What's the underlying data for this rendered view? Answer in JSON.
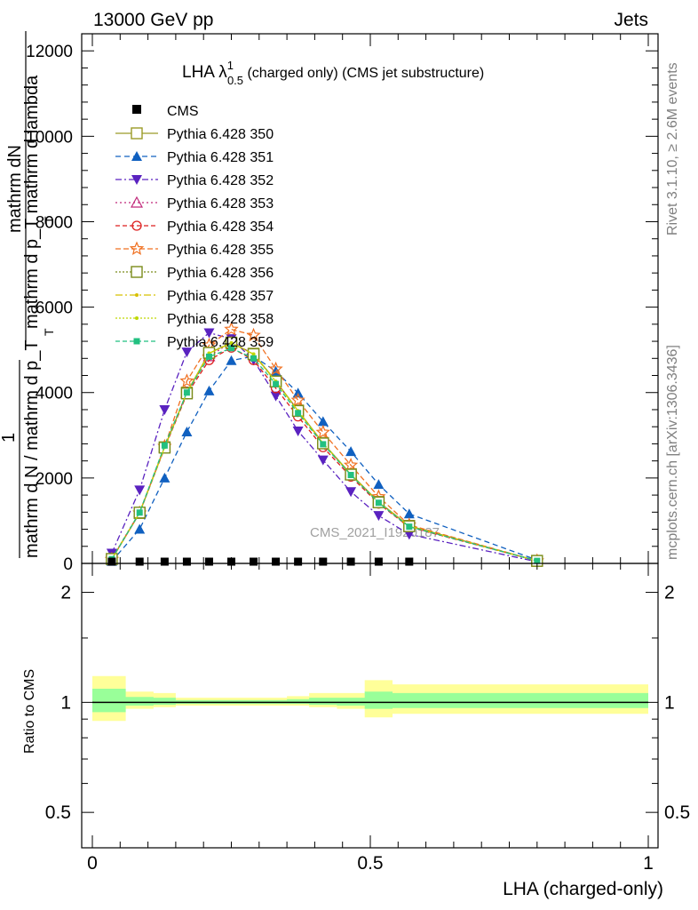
{
  "header": {
    "left": "13000 GeV pp",
    "right": "Jets"
  },
  "side_labels": {
    "rivet": "Rivet 3.1.10, ≥ 2.6M events",
    "mcplots": "mcplots.cern.ch [arXiv:1306.3436]"
  },
  "watermark": "CMS_2021_I1920187",
  "chart_data": [
    {
      "type": "line",
      "panel": "main",
      "title": {
        "text": "LHA λ",
        "sup": "1",
        "sub": "0.5",
        "rest": " (charged only) (CMS jet substructure)"
      },
      "ylabel": {
        "line1": "mathrm dN",
        "line2": "mathrm d p_T mathrm d lambda",
        "line3": "1",
        "line4": "mathrm d N / mathrm d p_T",
        "sub_T": "T"
      },
      "xlim": [
        0,
        1
      ],
      "ylim": [
        0,
        12400
      ],
      "yticks": [
        0,
        2000,
        4000,
        6000,
        8000,
        10000,
        12000
      ],
      "ytick_labels": [
        "0",
        "2000",
        "4000",
        "6000",
        "8000",
        "10000",
        "12000"
      ],
      "legend_position": "top-left",
      "cms": {
        "name": "CMS",
        "x": [
          0.035,
          0.085,
          0.13,
          0.17,
          0.21,
          0.25,
          0.29,
          0.33,
          0.37,
          0.415,
          0.465,
          0.515,
          0.57
        ],
        "y": [
          10,
          10,
          10,
          10,
          10,
          10,
          10,
          10,
          10,
          10,
          10,
          10,
          10
        ]
      },
      "x": [
        0.035,
        0.085,
        0.13,
        0.17,
        0.21,
        0.25,
        0.29,
        0.33,
        0.37,
        0.415,
        0.465,
        0.515,
        0.57,
        0.8
      ],
      "series": [
        {
          "name": "Pythia 6.428 350",
          "color": "#9b9b27",
          "dash": "",
          "marker": "open-square",
          "y": [
            100,
            1180,
            2720,
            4000,
            4930,
            5160,
            4910,
            4270,
            3580,
            2820,
            2090,
            1440,
            880,
            60
          ]
        },
        {
          "name": "Pythia 6.428 351",
          "color": "#1060c0",
          "dash": "6,4",
          "marker": "filled-triangle-up",
          "y": [
            50,
            800,
            2000,
            3080,
            4040,
            4750,
            4850,
            4500,
            3990,
            3320,
            2620,
            1850,
            1160,
            80
          ]
        },
        {
          "name": "Pythia 6.428 352",
          "color": "#5a22c0",
          "dash": "7,3,2,3",
          "marker": "filled-triangle-down",
          "y": [
            240,
            1720,
            3600,
            4950,
            5400,
            5260,
            4760,
            3920,
            3100,
            2420,
            1680,
            1120,
            680,
            40
          ]
        },
        {
          "name": "Pythia 6.428 353",
          "color": "#c0287a",
          "dash": "2,3",
          "marker": "open-triangle-up",
          "y": [
            110,
            1200,
            2720,
            4000,
            4850,
            5180,
            4900,
            4250,
            3580,
            2800,
            2080,
            1420,
            860,
            60
          ]
        },
        {
          "name": "Pythia 6.428 354",
          "color": "#dd1f1f",
          "dash": "5,3",
          "marker": "open-circle",
          "y": [
            100,
            1180,
            2700,
            3960,
            4760,
            5050,
            4760,
            4100,
            3440,
            2720,
            2030,
            1400,
            850,
            60
          ]
        },
        {
          "name": "Pythia 6.428 355",
          "color": "#f07020",
          "dash": "6,3",
          "marker": "open-star",
          "y": [
            95,
            1180,
            2740,
            4270,
            5110,
            5480,
            5340,
            4550,
            3820,
            3070,
            2300,
            1560,
            900,
            60
          ]
        },
        {
          "name": "Pythia 6.428 356",
          "color": "#7a8c1a",
          "dash": "2,2",
          "marker": "open-square",
          "y": [
            105,
            1190,
            2710,
            3980,
            4930,
            5170,
            4900,
            4260,
            3570,
            2810,
            2080,
            1430,
            870,
            60
          ]
        },
        {
          "name": "Pythia 6.428 357",
          "color": "#d8c000",
          "dash": "8,3,2,3",
          "marker": "filled-dot",
          "y": [
            100,
            1190,
            2720,
            4000,
            4920,
            5160,
            4900,
            4260,
            3570,
            2810,
            2080,
            1430,
            870,
            60
          ]
        },
        {
          "name": "Pythia 6.428 358",
          "color": "#bfd800",
          "dash": "2,2",
          "marker": "filled-dot",
          "y": [
            100,
            1190,
            2720,
            4000,
            4920,
            5160,
            4900,
            4260,
            3570,
            2810,
            2080,
            1430,
            870,
            60
          ]
        },
        {
          "name": "Pythia 6.428 359",
          "color": "#22c080",
          "dash": "5,3",
          "marker": "filled-square",
          "y": [
            100,
            1190,
            2760,
            4000,
            4840,
            5040,
            4800,
            4200,
            3520,
            2790,
            2070,
            1420,
            860,
            60
          ]
        }
      ]
    },
    {
      "type": "area",
      "panel": "ratio",
      "ylabel": "Ratio to CMS",
      "xlabel": "LHA (charged-only)",
      "xlim": [
        0,
        1
      ],
      "log_y": true,
      "ylim": [
        0.4,
        2.4
      ],
      "yticks": [
        0.5,
        1,
        2
      ],
      "ytick_labels": [
        "0.5",
        "1",
        "2"
      ],
      "xticks": [
        0,
        0.5,
        1
      ],
      "xtick_labels": [
        "0",
        "0.5",
        "1"
      ],
      "reference": 1,
      "bins": [
        0,
        0.06,
        0.11,
        0.15,
        0.19,
        0.23,
        0.27,
        0.31,
        0.35,
        0.39,
        0.44,
        0.49,
        0.54,
        0.6,
        1.0
      ],
      "band_outer": {
        "color": "#ffff99",
        "low": [
          0.89,
          0.96,
          0.97,
          0.98,
          0.98,
          0.98,
          0.98,
          0.98,
          0.98,
          0.97,
          0.96,
          0.91,
          0.93,
          0.93
        ],
        "high": [
          1.18,
          1.07,
          1.06,
          1.03,
          1.03,
          1.03,
          1.03,
          1.03,
          1.04,
          1.06,
          1.06,
          1.15,
          1.12,
          1.12
        ]
      },
      "band_inner": {
        "color": "#99ff99",
        "low": [
          0.94,
          0.98,
          0.985,
          0.99,
          0.99,
          0.99,
          0.99,
          0.99,
          0.99,
          0.985,
          0.98,
          0.96,
          0.965,
          0.965
        ],
        "high": [
          1.09,
          1.035,
          1.03,
          1.015,
          1.015,
          1.015,
          1.015,
          1.015,
          1.02,
          1.03,
          1.03,
          1.07,
          1.06,
          1.06
        ]
      }
    }
  ]
}
